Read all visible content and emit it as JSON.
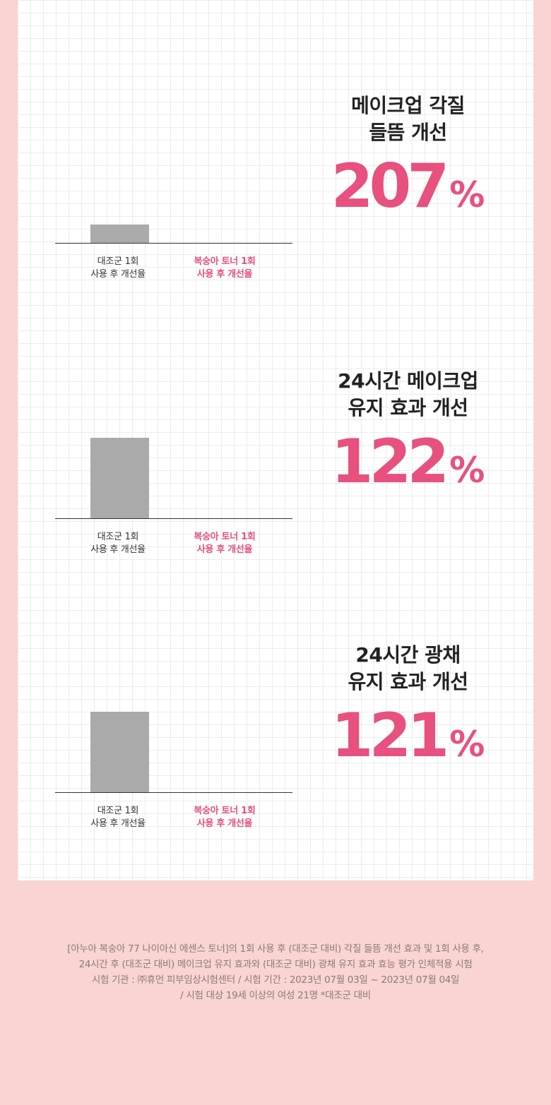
{
  "colors": {
    "background": "#fad4d2",
    "accent": "#e8507e",
    "bar": "#aaaaaa"
  },
  "sections": [
    {
      "title_line1": "메이크업 각질",
      "title_line2": "들뜸 개선",
      "value": "207",
      "unit": "%",
      "control_label_line1": "대조군 1회",
      "control_label_line2": "사용 후 개선율",
      "product_label_line1": "복숭아 토너 1회",
      "product_label_line2": "사용 후 개선율"
    },
    {
      "title_line1": "24시간 메이크업",
      "title_line2": "유지 효과 개선",
      "value": "122",
      "unit": "%",
      "control_label_line1": "대조군 1회",
      "control_label_line2": "사용 후 개선율",
      "product_label_line1": "복숭아 토너 1회",
      "product_label_line2": "사용 후 개선율"
    },
    {
      "title_line1": "24시간 광채",
      "title_line2": "유지 효과 개선",
      "value": "121",
      "unit": "%",
      "control_label_line1": "대조군 1회",
      "control_label_line2": "사용 후 개선율",
      "product_label_line1": "복숭아 토너 1회",
      "product_label_line2": "사용 후 개선율"
    }
  ],
  "footnote": {
    "line1": "[아누아 복숭아 77 나이아신 에센스 토너]의 1회 사용 후 (대조군 대비) 각질 들뜸 개선 효과 및 1회 사용 후,",
    "line2": "24시간 후 (대조군 대비) 메이크업 유지 효과와 (대조군 대비) 광채 유지 효과 효능 평가 인체적용 시험",
    "line3": "시험 기관 : ㈜휴먼 피부임상시험센터 / 시험 기간 : 2023년 07월 03일 ~ 2023년 07월 04일",
    "line4": "/ 시험 대상 19세 이상의 여성 21명 *대조군 대비"
  }
}
